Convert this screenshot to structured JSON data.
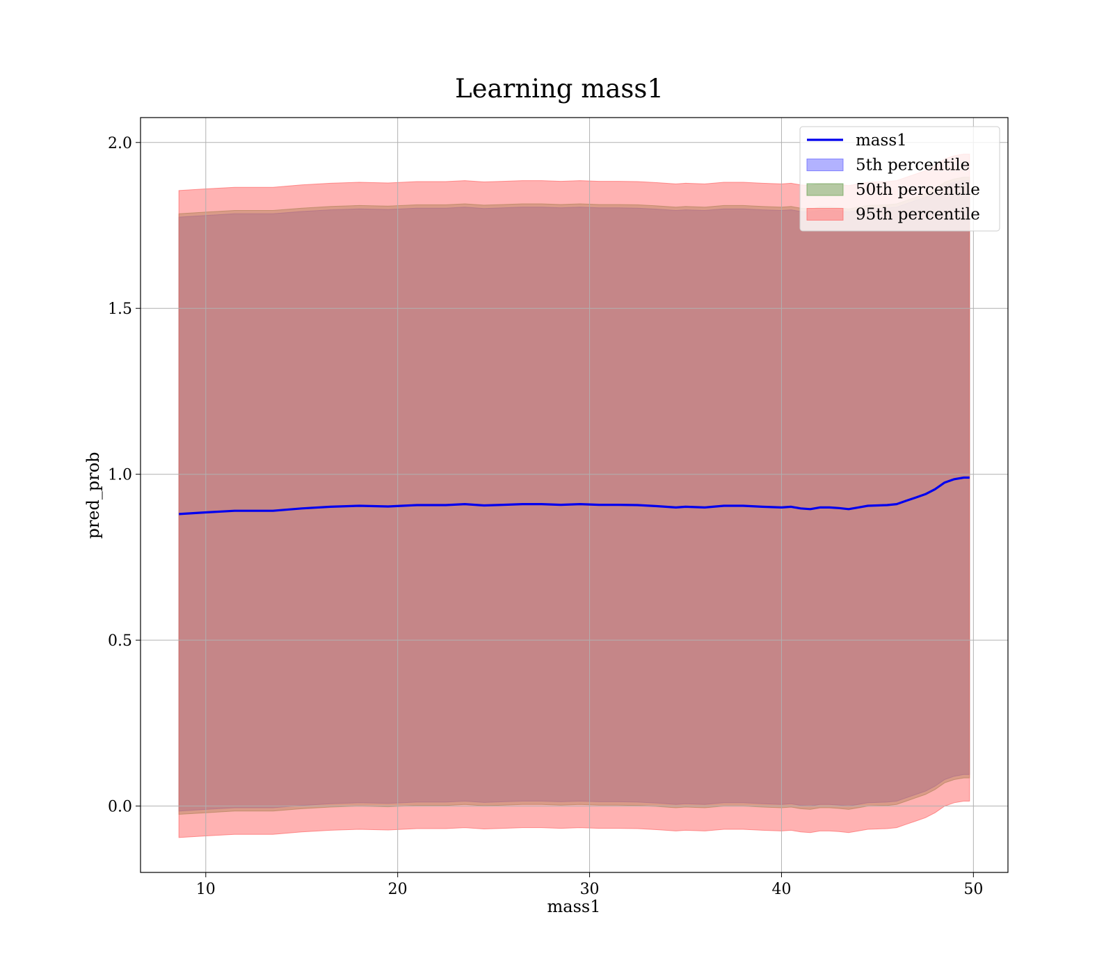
{
  "chart_data": {
    "type": "line",
    "title": "Learning mass1",
    "xlabel": "mass1",
    "ylabel": "pred_prob",
    "xlim": [
      6.6,
      51.8
    ],
    "ylim": [
      -0.2,
      2.075
    ],
    "xticks": [
      10,
      20,
      30,
      40,
      50
    ],
    "yticks": [
      0.0,
      0.5,
      1.0,
      1.5,
      2.0
    ],
    "xtick_labels": [
      "10",
      "20",
      "30",
      "40",
      "50"
    ],
    "ytick_labels": [
      "0.0",
      "0.5",
      "1.0",
      "1.5",
      "2.0"
    ],
    "grid": true,
    "legend_position": "top-right",
    "x": [
      8.6,
      10.0,
      11.5,
      13.5,
      15.0,
      16.5,
      18.0,
      19.5,
      21.0,
      22.5,
      23.5,
      24.5,
      25.5,
      26.5,
      27.5,
      28.5,
      29.5,
      30.5,
      31.5,
      32.5,
      33.5,
      34.5,
      35.0,
      36.0,
      37.0,
      38.0,
      39.0,
      40.0,
      40.5,
      41.0,
      41.5,
      42.0,
      42.5,
      43.0,
      43.5,
      44.0,
      44.5,
      45.0,
      45.5,
      46.0,
      46.5,
      47.0,
      47.5,
      48.0,
      48.5,
      49.0,
      49.5,
      49.8
    ],
    "series": [
      {
        "name": "mass1",
        "role": "line",
        "color": "#0000ee",
        "values": [
          0.88,
          0.885,
          0.89,
          0.89,
          0.897,
          0.902,
          0.905,
          0.903,
          0.907,
          0.907,
          0.91,
          0.906,
          0.908,
          0.91,
          0.91,
          0.908,
          0.91,
          0.908,
          0.908,
          0.907,
          0.904,
          0.9,
          0.902,
          0.9,
          0.905,
          0.905,
          0.902,
          0.9,
          0.902,
          0.897,
          0.895,
          0.9,
          0.9,
          0.898,
          0.895,
          0.9,
          0.905,
          0.906,
          0.907,
          0.91,
          0.92,
          0.93,
          0.94,
          0.955,
          0.975,
          0.985,
          0.99,
          0.99
        ]
      },
      {
        "name": "5th percentile",
        "role": "band",
        "color": "#5555ff",
        "opacity": 0.45,
        "lower": [
          -0.015,
          -0.01,
          -0.005,
          -0.005,
          0.002,
          0.007,
          0.01,
          0.008,
          0.012,
          0.012,
          0.015,
          0.011,
          0.013,
          0.015,
          0.015,
          0.013,
          0.015,
          0.013,
          0.013,
          0.012,
          0.009,
          0.005,
          0.007,
          0.005,
          0.01,
          0.01,
          0.007,
          0.005,
          0.007,
          0.002,
          0.0,
          0.005,
          0.005,
          0.003,
          0.0,
          0.005,
          0.01,
          0.011,
          0.012,
          0.015,
          0.025,
          0.035,
          0.045,
          0.06,
          0.08,
          0.09,
          0.095,
          0.095
        ],
        "upper": [
          1.775,
          1.78,
          1.785,
          1.785,
          1.792,
          1.797,
          1.8,
          1.798,
          1.802,
          1.802,
          1.805,
          1.801,
          1.803,
          1.805,
          1.805,
          1.803,
          1.805,
          1.803,
          1.803,
          1.802,
          1.799,
          1.795,
          1.797,
          1.795,
          1.8,
          1.8,
          1.797,
          1.795,
          1.797,
          1.792,
          1.79,
          1.795,
          1.795,
          1.793,
          1.79,
          1.795,
          1.8,
          1.801,
          1.802,
          1.805,
          1.815,
          1.825,
          1.835,
          1.85,
          1.87,
          1.88,
          1.885,
          1.885
        ]
      },
      {
        "name": "50th percentile",
        "role": "band",
        "color": "#5b9a44",
        "opacity": 0.45,
        "lower": [
          -0.025,
          -0.02,
          -0.015,
          -0.015,
          -0.008,
          -0.003,
          0.0,
          -0.002,
          0.002,
          0.002,
          0.005,
          0.001,
          0.003,
          0.005,
          0.005,
          0.003,
          0.005,
          0.003,
          0.003,
          0.002,
          -0.001,
          -0.005,
          -0.003,
          -0.005,
          0.0,
          0.0,
          -0.003,
          -0.005,
          -0.003,
          -0.008,
          -0.01,
          -0.005,
          -0.005,
          -0.007,
          -0.01,
          -0.005,
          0.0,
          0.001,
          0.002,
          0.005,
          0.015,
          0.025,
          0.035,
          0.05,
          0.07,
          0.08,
          0.085,
          0.085
        ],
        "upper": [
          1.785,
          1.79,
          1.795,
          1.795,
          1.802,
          1.807,
          1.81,
          1.808,
          1.812,
          1.812,
          1.815,
          1.811,
          1.813,
          1.815,
          1.815,
          1.813,
          1.815,
          1.813,
          1.813,
          1.812,
          1.809,
          1.805,
          1.807,
          1.805,
          1.81,
          1.81,
          1.807,
          1.805,
          1.807,
          1.802,
          1.8,
          1.805,
          1.805,
          1.803,
          1.8,
          1.805,
          1.81,
          1.811,
          1.812,
          1.815,
          1.825,
          1.835,
          1.845,
          1.86,
          1.88,
          1.89,
          1.895,
          1.895
        ]
      },
      {
        "name": "95th percentile",
        "role": "band",
        "color": "#ff6666",
        "opacity": 0.5,
        "lower": [
          -0.095,
          -0.09,
          -0.085,
          -0.085,
          -0.078,
          -0.073,
          -0.07,
          -0.072,
          -0.068,
          -0.068,
          -0.065,
          -0.069,
          -0.067,
          -0.065,
          -0.065,
          -0.067,
          -0.065,
          -0.067,
          -0.067,
          -0.068,
          -0.071,
          -0.075,
          -0.073,
          -0.075,
          -0.07,
          -0.07,
          -0.073,
          -0.075,
          -0.073,
          -0.078,
          -0.08,
          -0.075,
          -0.075,
          -0.077,
          -0.08,
          -0.075,
          -0.07,
          -0.069,
          -0.068,
          -0.065,
          -0.055,
          -0.045,
          -0.035,
          -0.02,
          0.0,
          0.01,
          0.015,
          0.015
        ],
        "upper": [
          1.855,
          1.86,
          1.865,
          1.865,
          1.872,
          1.877,
          1.88,
          1.878,
          1.882,
          1.882,
          1.885,
          1.881,
          1.883,
          1.885,
          1.885,
          1.883,
          1.885,
          1.883,
          1.883,
          1.882,
          1.879,
          1.875,
          1.877,
          1.875,
          1.88,
          1.88,
          1.877,
          1.875,
          1.877,
          1.872,
          1.87,
          1.875,
          1.875,
          1.873,
          1.87,
          1.875,
          1.88,
          1.881,
          1.882,
          1.885,
          1.895,
          1.905,
          1.915,
          1.93,
          1.95,
          1.96,
          1.965,
          1.965
        ]
      }
    ]
  }
}
